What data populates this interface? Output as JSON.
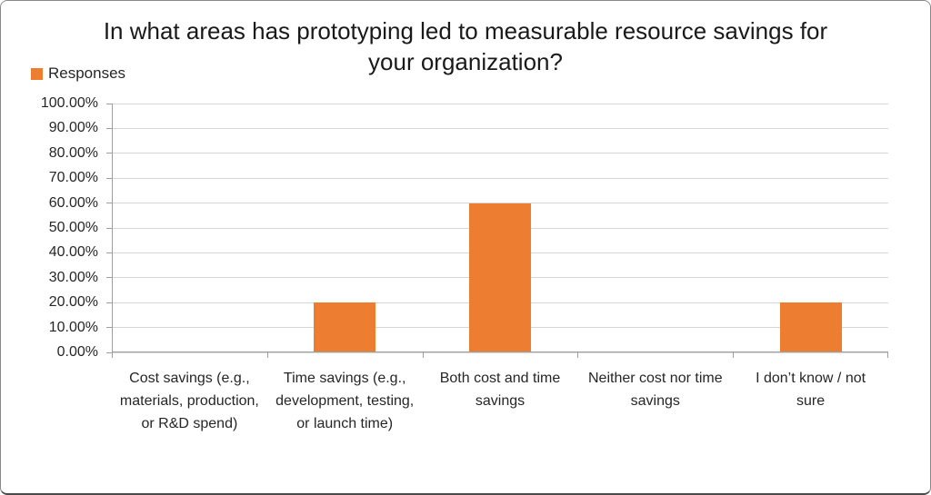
{
  "chart_data": {
    "type": "bar",
    "title": "In what areas has prototyping led to measurable resource savings for your organization?",
    "legend_position": "top-left",
    "grid": true,
    "categories": [
      "Cost savings (e.g., materials, production, or R&D spend)",
      "Time savings (e.g., development, testing, or launch time)",
      "Both cost and time savings",
      "Neither cost nor time savings",
      "I don’t know / not sure"
    ],
    "series": [
      {
        "name": "Responses",
        "values": [
          0,
          20,
          60,
          0,
          20
        ]
      }
    ],
    "ylim": [
      0,
      100
    ],
    "ytick_step": 10,
    "ytick_labels": [
      "0.00%",
      "10.00%",
      "20.00%",
      "30.00%",
      "40.00%",
      "50.00%",
      "60.00%",
      "70.00%",
      "80.00%",
      "90.00%",
      "100.00%"
    ],
    "xlabel": "",
    "ylabel": "",
    "colors": {
      "bar": "#ED7D31",
      "gridline": "#D6D6D6",
      "axis": "#9E9E9E",
      "text": "#262626",
      "title": "#1A1A1A",
      "background": "#FFFFFF",
      "frame_border": "#8A8A8A"
    }
  }
}
